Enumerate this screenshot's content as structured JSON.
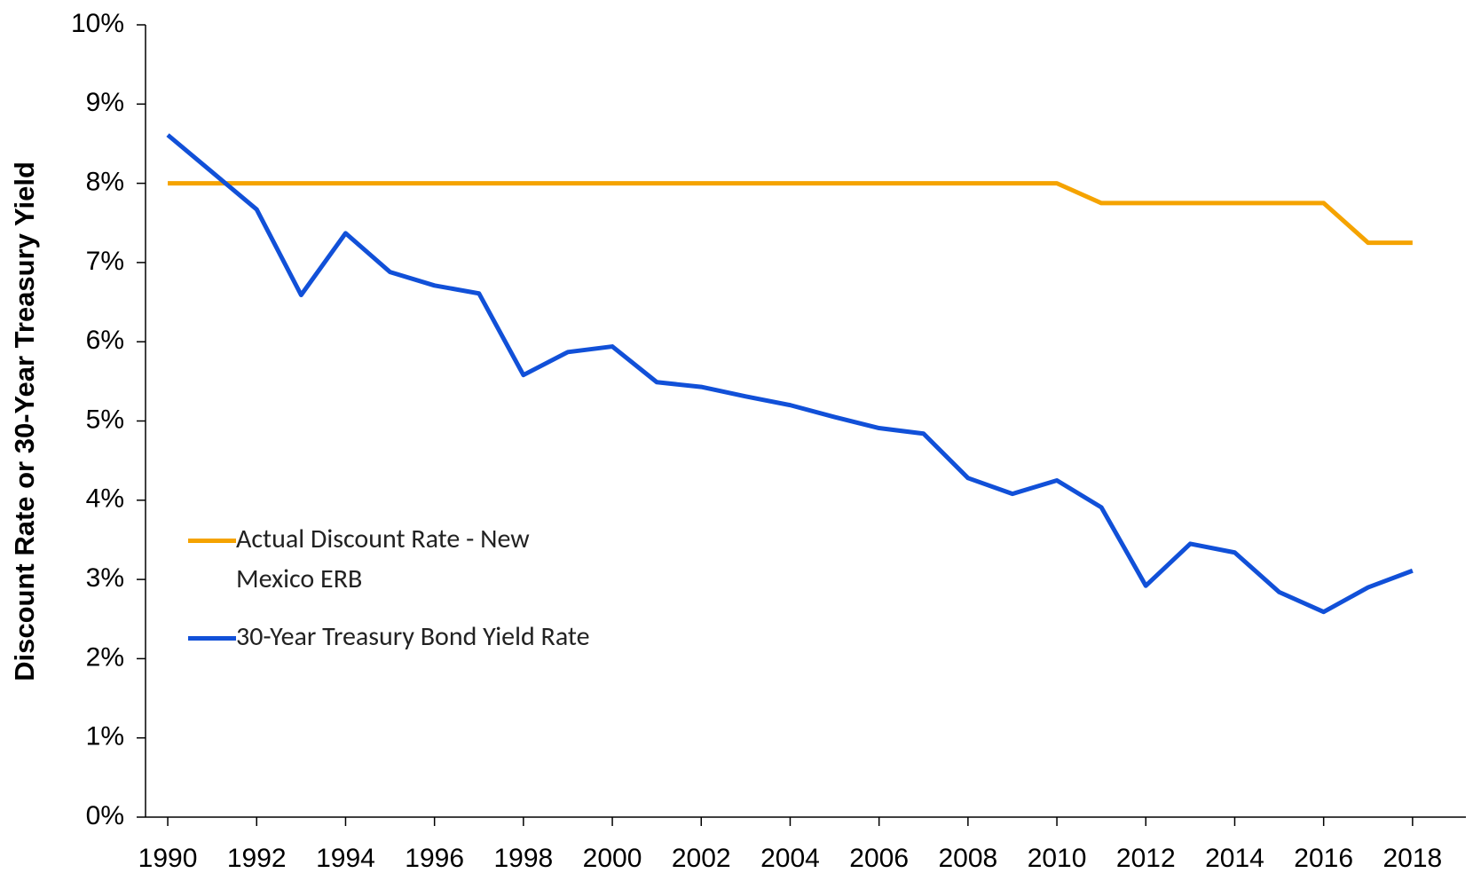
{
  "chart_data": {
    "type": "line",
    "y_label": "Discount Rate or 30-Year Treasury Yield",
    "x": [
      1990,
      1991,
      1992,
      1993,
      1994,
      1995,
      1996,
      1997,
      1998,
      1999,
      2000,
      2001,
      2002,
      2003,
      2004,
      2005,
      2006,
      2007,
      2008,
      2009,
      2010,
      2011,
      2012,
      2013,
      2014,
      2015,
      2016,
      2017,
      2018
    ],
    "series": [
      {
        "name": "Actual Discount Rate - New Mexico ERB",
        "color": "#f5a300",
        "values": [
          8,
          8,
          8,
          8,
          8,
          8,
          8,
          8,
          8,
          8,
          8,
          8,
          8,
          8,
          8,
          8,
          8,
          8,
          8,
          8,
          8,
          7.75,
          7.75,
          7.75,
          7.75,
          7.75,
          7.75,
          7.25,
          7.25
        ]
      },
      {
        "name": "30-Year Treasury Bond Yield Rate",
        "color": "#1150d8",
        "values": [
          8.61,
          8.14,
          7.67,
          6.59,
          7.37,
          6.88,
          6.71,
          6.61,
          5.58,
          5.87,
          5.94,
          5.49,
          5.43,
          5.31,
          5.2,
          5.05,
          4.91,
          4.84,
          4.28,
          4.08,
          4.25,
          3.91,
          2.92,
          3.45,
          3.34,
          2.84,
          2.59,
          2.9,
          3.11
        ]
      }
    ],
    "xlim": [
      1989.5,
      2019.2
    ],
    "xticks": [
      1990,
      1992,
      1994,
      1996,
      1998,
      2000,
      2002,
      2004,
      2006,
      2008,
      2010,
      2012,
      2014,
      2016,
      2018
    ],
    "ylim": [
      0,
      10
    ],
    "yticks": [
      {
        "value": 0,
        "label": "0%"
      },
      {
        "value": 1,
        "label": "1%"
      },
      {
        "value": 2,
        "label": "2%"
      },
      {
        "value": 3,
        "label": "3%"
      },
      {
        "value": 4,
        "label": "4%"
      },
      {
        "value": 5,
        "label": "5%"
      },
      {
        "value": 6,
        "label": "6%"
      },
      {
        "value": 7,
        "label": "7%"
      },
      {
        "value": 8,
        "label": "8%"
      },
      {
        "value": 9,
        "label": "9%"
      },
      {
        "value": 10,
        "label": "10%"
      }
    ],
    "grid": false
  }
}
